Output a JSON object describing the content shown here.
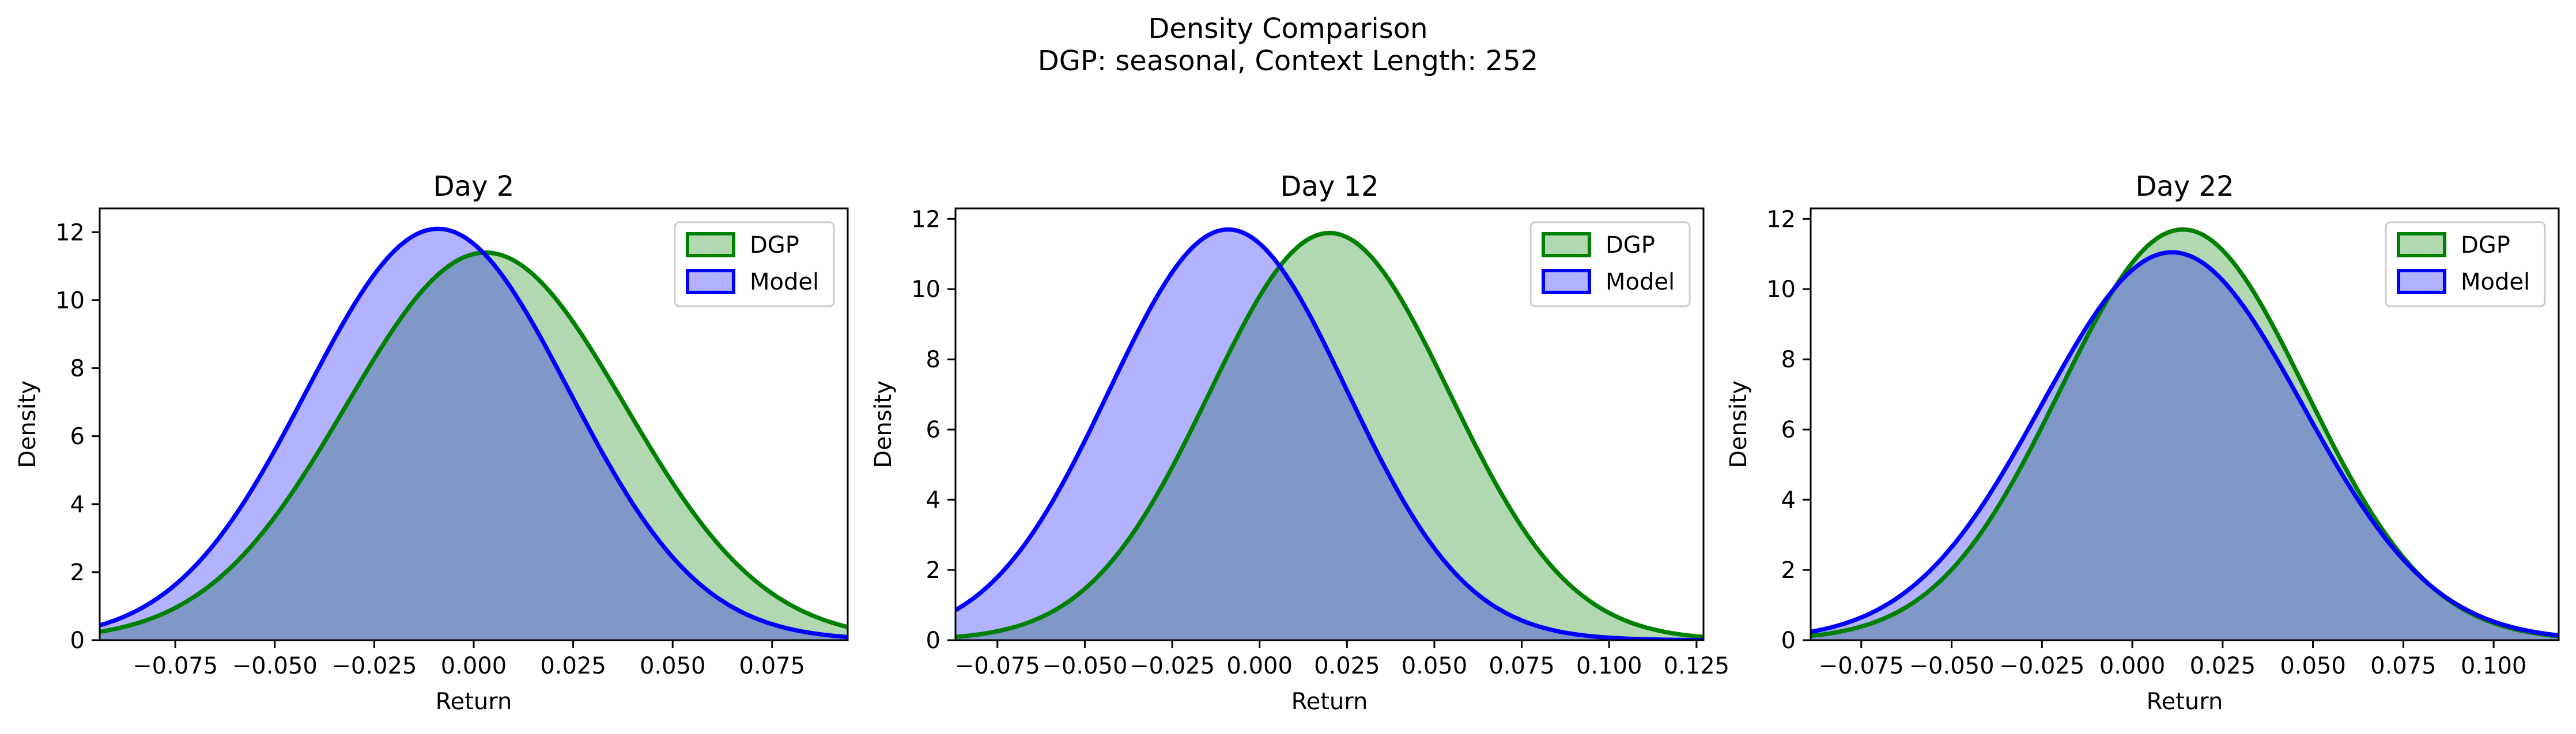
{
  "figure": {
    "title_line1": "Density Comparison",
    "title_line2": "DGP: seasonal, Context Length: 252"
  },
  "colors": {
    "dgp_line": "#008000",
    "dgp_fill": "#b2d8b2",
    "model_line": "#0000ff",
    "model_fill": "#b2b2ff",
    "overlap_fill": "#7f98c8"
  },
  "chart_data": [
    {
      "type": "area",
      "title": "Day 2",
      "xlabel": "Return",
      "ylabel": "Density",
      "xlim": [
        -0.094,
        0.094
      ],
      "ylim": [
        0,
        12.7
      ],
      "xticks": [
        -0.075,
        -0.05,
        -0.025,
        0.0,
        0.025,
        0.05,
        0.075
      ],
      "xtick_labels": [
        "−0.075",
        "−0.050",
        "−0.025",
        "0.000",
        "0.025",
        "0.050",
        "0.075"
      ],
      "yticks": [
        0,
        2,
        4,
        6,
        8,
        10,
        12
      ],
      "ytick_labels": [
        "0",
        "2",
        "4",
        "6",
        "8",
        "10",
        "12"
      ],
      "legend": {
        "placement": "top-right",
        "entries": [
          "DGP",
          "Model"
        ]
      },
      "series": [
        {
          "name": "DGP",
          "distribution": "normal",
          "mean": 0.003,
          "peak_density": 11.4
        },
        {
          "name": "Model",
          "distribution": "normal",
          "mean": -0.009,
          "peak_density": 12.1
        }
      ]
    },
    {
      "type": "area",
      "title": "Day 12",
      "xlabel": "Return",
      "ylabel": "Density",
      "xlim": [
        -0.087,
        0.127
      ],
      "ylim": [
        0,
        12.3
      ],
      "xticks": [
        -0.075,
        -0.05,
        -0.025,
        0.0,
        0.025,
        0.05,
        0.075,
        0.1,
        0.125
      ],
      "xtick_labels": [
        "−0.075",
        "−0.050",
        "−0.025",
        "0.000",
        "0.025",
        "0.050",
        "0.075",
        "0.100",
        "0.125"
      ],
      "yticks": [
        0,
        2,
        4,
        6,
        8,
        10,
        12
      ],
      "ytick_labels": [
        "0",
        "2",
        "4",
        "6",
        "8",
        "10",
        "12"
      ],
      "legend": {
        "placement": "top-right",
        "entries": [
          "DGP",
          "Model"
        ]
      },
      "series": [
        {
          "name": "DGP",
          "distribution": "normal",
          "mean": 0.02,
          "peak_density": 11.6
        },
        {
          "name": "Model",
          "distribution": "normal",
          "mean": -0.009,
          "peak_density": 11.7
        }
      ]
    },
    {
      "type": "area",
      "title": "Day 22",
      "xlabel": "Return",
      "ylabel": "Density",
      "xlim": [
        -0.089,
        0.118
      ],
      "ylim": [
        0,
        12.3
      ],
      "xticks": [
        -0.075,
        -0.05,
        -0.025,
        0.0,
        0.025,
        0.05,
        0.075,
        0.1
      ],
      "xtick_labels": [
        "−0.075",
        "−0.050",
        "−0.025",
        "0.000",
        "0.025",
        "0.050",
        "0.075",
        "0.100"
      ],
      "yticks": [
        0,
        2,
        4,
        6,
        8,
        10,
        12
      ],
      "ytick_labels": [
        "0",
        "2",
        "4",
        "6",
        "8",
        "10",
        "12"
      ],
      "legend": {
        "placement": "top-right",
        "entries": [
          "DGP",
          "Model"
        ]
      },
      "series": [
        {
          "name": "DGP",
          "distribution": "normal",
          "mean": 0.014,
          "peak_density": 11.7
        },
        {
          "name": "Model",
          "distribution": "normal",
          "mean": 0.011,
          "peak_density": 11.05
        }
      ]
    }
  ]
}
